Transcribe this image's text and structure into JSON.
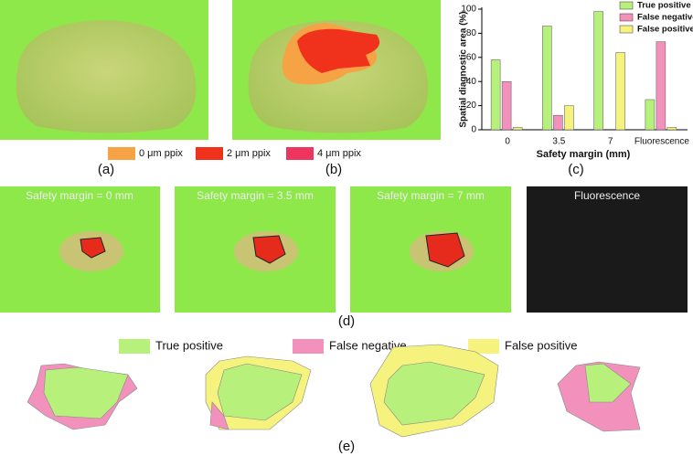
{
  "panel_labels": [
    "(a)",
    "(b)",
    "(c)",
    "(d)",
    "(e)"
  ],
  "legend_b": [
    "0 μm ppix",
    "2 μm ppix",
    "4 μm ppix"
  ],
  "panel_d_titles": [
    "Safety margin = 0 mm",
    "Safety margin = 3.5 mm",
    "Safety margin = 7 mm",
    "Fluorescence"
  ],
  "legend_e": [
    "True positive",
    "False negative",
    "False positive"
  ],
  "chart_data": {
    "type": "bar",
    "x_label": "Safety margin (mm)",
    "y_label": "Spatial diagnostic area (%)",
    "categories": [
      "0",
      "3.5",
      "7",
      "Fluorescence"
    ],
    "series": [
      {
        "name": "True positive",
        "color": "#b8f07c",
        "values": [
          58,
          86,
          98,
          25
        ]
      },
      {
        "name": "False negative",
        "color": "#f291bb",
        "values": [
          40,
          12,
          0,
          73
        ]
      },
      {
        "name": "False positive",
        "color": "#f6f27e",
        "values": [
          2,
          20,
          64,
          2
        ]
      }
    ],
    "ylim": [
      0,
      100
    ],
    "yticks": [
      0,
      20,
      40,
      60,
      80,
      100
    ],
    "legend": "upper right"
  }
}
